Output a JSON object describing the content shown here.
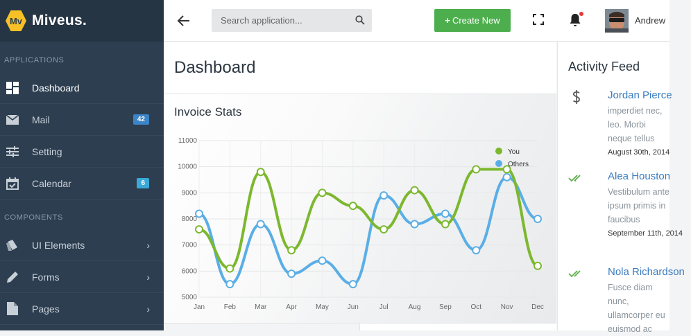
{
  "brand": {
    "logo": "Mv",
    "name": "Miveus."
  },
  "sidebar": {
    "sections": [
      {
        "title": "APPLICATIONS"
      },
      {
        "title": "COMPONENTS"
      }
    ],
    "items": [
      {
        "label": "Dashboard",
        "icon": "dashboard-icon",
        "active": true
      },
      {
        "label": "Mail",
        "icon": "mail-icon",
        "badge": "42"
      },
      {
        "label": "Setting",
        "icon": "sliders-icon"
      },
      {
        "label": "Calendar",
        "icon": "calendar-icon",
        "badge": "6"
      },
      {
        "label": "UI Elements",
        "icon": "ui-elements-icon",
        "chevron": "›"
      },
      {
        "label": "Forms",
        "icon": "pencil-icon",
        "chevron": "›"
      },
      {
        "label": "Pages",
        "icon": "page-icon",
        "chevron": "›"
      }
    ]
  },
  "topbar": {
    "search_placeholder": "Search application...",
    "create_label": "Create New",
    "create_plus": "+",
    "user_name": "Andrew"
  },
  "main": {
    "page_title": "Dashboard",
    "panel_title": "Invoice Stats"
  },
  "chart_data": {
    "type": "line",
    "categories": [
      "Jan",
      "Feb",
      "Mar",
      "Apr",
      "May",
      "Jun",
      "Jul",
      "Aug",
      "Sep",
      "Oct",
      "Nov",
      "Dec"
    ],
    "series": [
      {
        "name": "You",
        "color": "#7cb82f",
        "values": [
          7600,
          6100,
          9800,
          6800,
          9000,
          8500,
          7600,
          9100,
          7800,
          9900,
          9900,
          6200
        ]
      },
      {
        "name": "Others",
        "color": "#5aaee6",
        "values": [
          8200,
          5500,
          7800,
          5900,
          6400,
          5500,
          8900,
          7800,
          8200,
          6800,
          9600,
          8000
        ]
      }
    ],
    "yticks": [
      "11000",
      "10000",
      "9000",
      "8000",
      "7000",
      "6000",
      "5000"
    ],
    "ylim": [
      5000,
      11000
    ],
    "grid": true,
    "legend_position": "top-right",
    "smooth": true
  },
  "feed": {
    "title": "Activity Feed",
    "items": [
      {
        "icon": "dollar-icon",
        "name": "Jordan Pierce",
        "lines": [
          "imperdiet nec,",
          "leo. Morbi",
          "neque tellus"
        ],
        "date": "August 30th, 2014"
      },
      {
        "icon": "double-check-icon",
        "name": "Alea Houston",
        "lines": [
          "Vestibulum ante",
          "ipsum primis in",
          "faucibus"
        ],
        "date": "September 11th, 2014"
      },
      {
        "icon": "double-check-icon",
        "name": "Nola Richardson",
        "lines": [
          "Fusce diam",
          "nunc,",
          "ullamcorper eu",
          "euismod ac"
        ],
        "date": ""
      }
    ]
  }
}
